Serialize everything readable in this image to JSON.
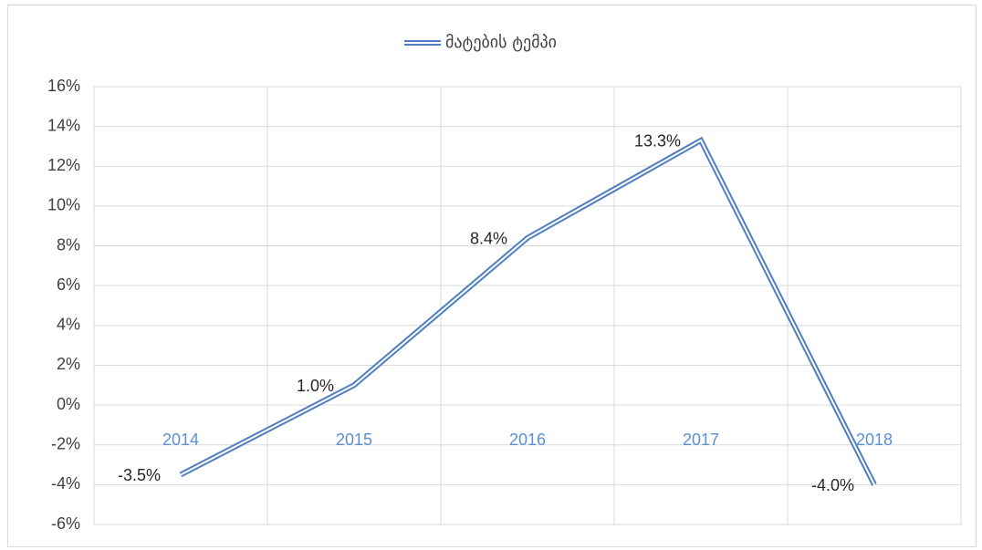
{
  "chart_data": {
    "type": "line",
    "categories": [
      "2014",
      "2015",
      "2016",
      "2017",
      "2018"
    ],
    "series": [
      {
        "name": "მატების ტემპი",
        "color": "#4f7fc0",
        "values": [
          -3.5,
          1.0,
          8.4,
          13.3,
          -4.0
        ],
        "value_labels": [
          "-3.5%",
          "1.0%",
          "8.4%",
          "13.3%",
          "-4.0%"
        ]
      }
    ],
    "ylim": [
      -6,
      16
    ],
    "yticks": [
      {
        "value": -6,
        "label": "-6%"
      },
      {
        "value": -4,
        "label": "-4%"
      },
      {
        "value": -2,
        "label": "-2%"
      },
      {
        "value": 0,
        "label": "0%"
      },
      {
        "value": 2,
        "label": "2%"
      },
      {
        "value": 4,
        "label": "4%"
      },
      {
        "value": 6,
        "label": "6%"
      },
      {
        "value": 8,
        "label": "8%"
      },
      {
        "value": 10,
        "label": "10%"
      },
      {
        "value": 12,
        "label": "12%"
      },
      {
        "value": 14,
        "label": "14%"
      },
      {
        "value": 16,
        "label": "16%"
      }
    ],
    "grid": true,
    "legend": "top"
  }
}
